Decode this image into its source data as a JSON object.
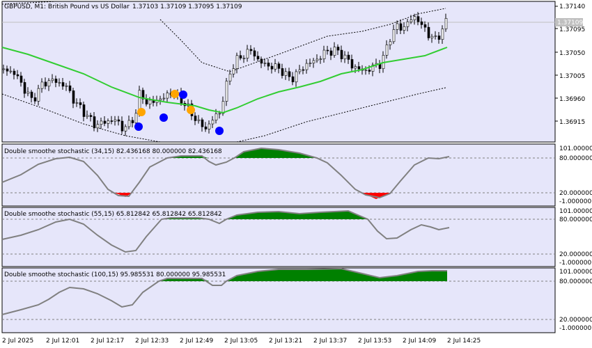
{
  "header": {
    "symbol": "GBPUSD, M1:  British Pound vs US Dollar",
    "ohlc": "1.37103 1.37109 1.37095 1.37109",
    "bid_label": "1.37109"
  },
  "colors": {
    "plot_bg": "#E6E6FA",
    "grid": "#C0C0C0",
    "ma": "#32CD32",
    "bullet_orange": "#FFA500",
    "bullet_blue": "#0000FF",
    "fill_green": "#008000",
    "fill_red": "#FF0000",
    "stoch_line": "#808080"
  },
  "price_axis": [
    "1.37140",
    "1.37095",
    "1.37050",
    "1.37005",
    "1.36960",
    "1.36915"
  ],
  "time_axis": [
    "2 Jul 2025",
    "2 Jul 12:01",
    "2 Jul 12:17",
    "2 Jul 12:33",
    "2 Jul 12:49",
    "2 Jul 13:05",
    "2 Jul 13:21",
    "2 Jul 13:37",
    "2 Jul 13:53",
    "2 Jul 14:09",
    "2 Jul 14:25"
  ],
  "indicators": [
    {
      "label": "Double smoothe stochastic (34,15) 82.436168 80.000000 82.436168",
      "ticks": [
        "101.000000",
        "80.000000",
        "20.000000",
        "-1.000000"
      ]
    },
    {
      "label": "Double smoothe stochastic (55,15) 65.812842 65.812842 65.812842",
      "ticks": [
        "101.000000",
        "80.000000",
        "20.000000",
        "-1.000000"
      ]
    },
    {
      "label": "Double smoothe stochastic (100,15) 95.985531 80.000000 95.985531",
      "ticks": [
        "101.000000",
        "80.000000",
        "20.000000",
        "-1.000000"
      ]
    }
  ],
  "chart_data": [
    {
      "type": "candlestick",
      "title": "GBPUSD, M1: British Pound vs US Dollar",
      "ylim": [
        1.369,
        1.3715
      ],
      "overlays": [
        "moving average",
        "upper envelope",
        "lower envelope",
        "signal dots"
      ],
      "ma": [
        [
          1.37057,
          1.37037,
          1.37015,
          1.36995,
          1.36975,
          1.36962,
          1.36955,
          1.3696,
          1.36975,
          1.36995,
          1.37012,
          1.37025,
          1.37035,
          1.37055,
          1.37073,
          1.37082
        ]
      ],
      "close": [
        1.37035,
        1.37012,
        1.36985,
        1.37005,
        1.36955,
        1.36925,
        1.36935,
        1.36985,
        1.36975,
        1.36905,
        1.37055,
        1.37035,
        1.37015,
        1.37065,
        1.3704,
        1.37105,
        1.37125,
        1.37109
      ]
    },
    {
      "type": "line",
      "title": "Double smoothe stochastic (34,15)",
      "ylim": [
        -1,
        101
      ],
      "levels": [
        80,
        20
      ],
      "values": [
        35,
        55,
        78,
        85,
        70,
        40,
        10,
        5,
        40,
        78,
        82,
        82,
        70,
        65,
        92,
        98,
        95,
        80,
        50,
        18,
        3,
        10,
        50,
        78,
        82,
        82.44
      ]
    },
    {
      "type": "line",
      "title": "Double smoothe stochastic (55,15)",
      "ylim": [
        -1,
        101
      ],
      "levels": [
        80,
        20
      ],
      "values": [
        45,
        60,
        75,
        82,
        65,
        40,
        30,
        55,
        80,
        82,
        82,
        75,
        88,
        92,
        90,
        92,
        95,
        85,
        60,
        50,
        65,
        72,
        62,
        65.81
      ]
    },
    {
      "type": "line",
      "title": "Double smoothe stochastic (100,15)",
      "ylim": [
        -1,
        101
      ],
      "levels": [
        80,
        20
      ],
      "values": [
        20,
        25,
        50,
        82,
        70,
        50,
        40,
        45,
        65,
        82,
        82,
        75,
        90,
        97,
        97,
        97,
        97,
        88,
        85,
        95,
        98,
        98,
        95.99
      ]
    }
  ]
}
